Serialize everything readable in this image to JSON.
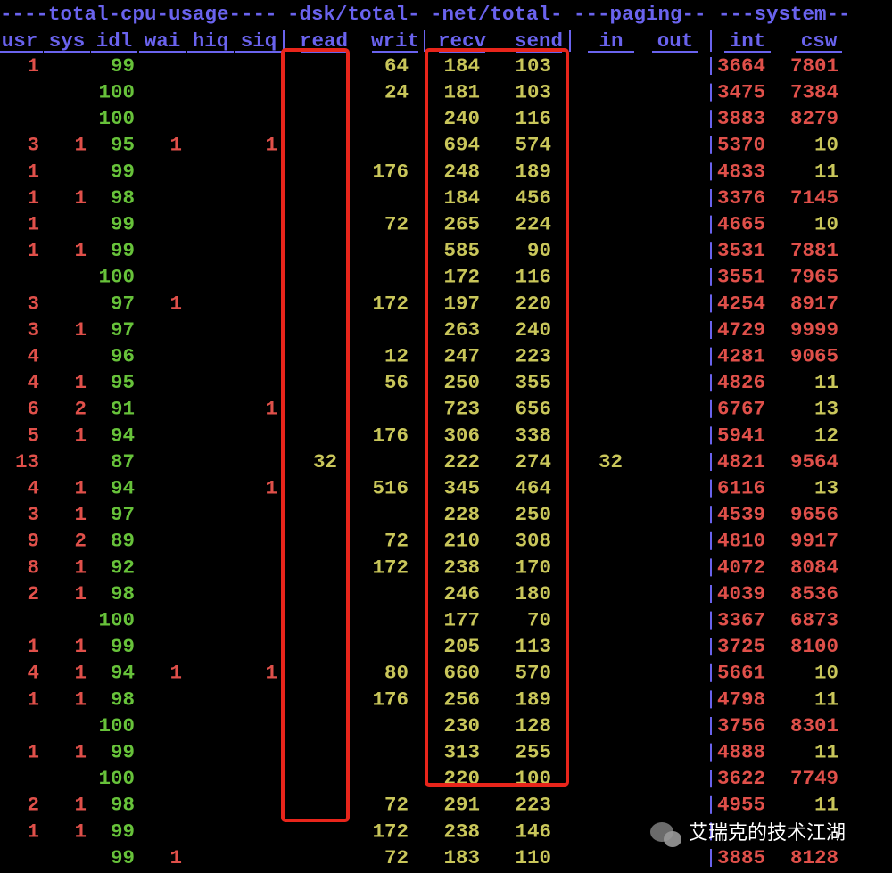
{
  "header": {
    "groups": [
      "----total-cpu-usage----",
      "-dsk/total-",
      "-net/total-",
      "---paging--",
      "---system--"
    ],
    "columns": [
      "usr",
      "sys",
      "idl",
      "wai",
      "hiq",
      "siq",
      "read",
      "writ",
      "recv",
      "send",
      "in",
      "out",
      "int",
      "csw"
    ]
  },
  "rows": [
    {
      "usr": "1",
      "idl": "99",
      "writ": "64",
      "recv": "184",
      "send": "103",
      "int": "3664",
      "csw": "7801"
    },
    {
      "idl": "100",
      "writ": "24",
      "recv": "181",
      "send": "103",
      "int": "3475",
      "csw": "7384"
    },
    {
      "idl": "100",
      "recv": "240",
      "send": "116",
      "int": "3883",
      "csw": "8279"
    },
    {
      "usr": "3",
      "sys": "1",
      "idl": "95",
      "wai": "1",
      "siq": "1",
      "recv": "694",
      "send": "574",
      "int": "5370",
      "csw": "10"
    },
    {
      "usr": "1",
      "idl": "99",
      "writ": "176",
      "recv": "248",
      "send": "189",
      "int": "4833",
      "csw": "11"
    },
    {
      "usr": "1",
      "sys": "1",
      "idl": "98",
      "recv": "184",
      "send": "456",
      "int": "3376",
      "csw": "7145"
    },
    {
      "usr": "1",
      "idl": "99",
      "writ": "72",
      "recv": "265",
      "send": "224",
      "int": "4665",
      "csw": "10"
    },
    {
      "usr": "1",
      "sys": "1",
      "idl": "99",
      "recv": "585",
      "send": "90",
      "int": "3531",
      "csw": "7881"
    },
    {
      "idl": "100",
      "recv": "172",
      "send": "116",
      "int": "3551",
      "csw": "7965"
    },
    {
      "usr": "3",
      "idl": "97",
      "wai": "1",
      "writ": "172",
      "recv": "197",
      "send": "220",
      "int": "4254",
      "csw": "8917"
    },
    {
      "usr": "3",
      "sys": "1",
      "idl": "97",
      "recv": "263",
      "send": "240",
      "int": "4729",
      "csw": "9999"
    },
    {
      "usr": "4",
      "idl": "96",
      "writ": "12",
      "recv": "247",
      "send": "223",
      "int": "4281",
      "csw": "9065"
    },
    {
      "usr": "4",
      "sys": "1",
      "idl": "95",
      "writ": "56",
      "recv": "250",
      "send": "355",
      "int": "4826",
      "csw": "11"
    },
    {
      "usr": "6",
      "sys": "2",
      "idl": "91",
      "siq": "1",
      "recv": "723",
      "send": "656",
      "int": "6767",
      "csw": "13"
    },
    {
      "usr": "5",
      "sys": "1",
      "idl": "94",
      "writ": "176",
      "recv": "306",
      "send": "338",
      "int": "5941",
      "csw": "12"
    },
    {
      "usr": "13",
      "idl": "87",
      "read": "32",
      "recv": "222",
      "send": "274",
      "in": "32",
      "int": "4821",
      "csw": "9564"
    },
    {
      "usr": "4",
      "sys": "1",
      "idl": "94",
      "siq": "1",
      "writ": "516",
      "recv": "345",
      "send": "464",
      "int": "6116",
      "csw": "13"
    },
    {
      "usr": "3",
      "sys": "1",
      "idl": "97",
      "recv": "228",
      "send": "250",
      "int": "4539",
      "csw": "9656"
    },
    {
      "usr": "9",
      "sys": "2",
      "idl": "89",
      "writ": "72",
      "recv": "210",
      "send": "308",
      "int": "4810",
      "csw": "9917"
    },
    {
      "usr": "8",
      "sys": "1",
      "idl": "92",
      "writ": "172",
      "recv": "238",
      "send": "170",
      "int": "4072",
      "csw": "8084"
    },
    {
      "usr": "2",
      "sys": "1",
      "idl": "98",
      "recv": "246",
      "send": "180",
      "int": "4039",
      "csw": "8536"
    },
    {
      "idl": "100",
      "recv": "177",
      "send": "70",
      "int": "3367",
      "csw": "6873"
    },
    {
      "usr": "1",
      "sys": "1",
      "idl": "99",
      "recv": "205",
      "send": "113",
      "int": "3725",
      "csw": "8100"
    },
    {
      "usr": "4",
      "sys": "1",
      "idl": "94",
      "wai": "1",
      "siq": "1",
      "writ": "80",
      "recv": "660",
      "send": "570",
      "int": "5661",
      "csw": "10"
    },
    {
      "usr": "1",
      "sys": "1",
      "idl": "98",
      "writ": "176",
      "recv": "256",
      "send": "189",
      "int": "4798",
      "csw": "11"
    },
    {
      "idl": "100",
      "recv": "230",
      "send": "128",
      "int": "3756",
      "csw": "8301"
    },
    {
      "usr": "1",
      "sys": "1",
      "idl": "99",
      "recv": "313",
      "send": "255",
      "int": "4888",
      "csw": "11"
    },
    {
      "idl": "100",
      "recv": "220",
      "send": "100",
      "int": "3622",
      "csw": "7749"
    },
    {
      "usr": "2",
      "sys": "1",
      "idl": "98",
      "writ": "72",
      "recv": "291",
      "send": "223",
      "int": "4955",
      "csw": "11"
    },
    {
      "usr": "1",
      "sys": "1",
      "idl": "99",
      "writ": "172",
      "recv": "238",
      "send": "146"
    },
    {
      "idl": "99",
      "wai": "1",
      "writ": "72",
      "recv": "183",
      "send": "110",
      "int": "3885",
      "csw": "8128"
    }
  ],
  "watermark": "艾瑞克的技术江湖"
}
